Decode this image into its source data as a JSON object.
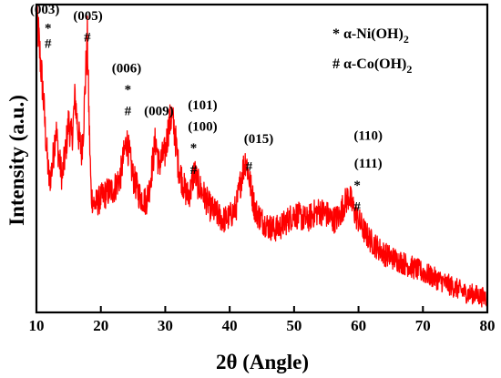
{
  "chart_data": {
    "type": "line",
    "title": "",
    "xlabel": "2θ (Angle)",
    "ylabel": "Intensity (a.u.)",
    "xlim": [
      10,
      80
    ],
    "ylim": [
      0,
      100
    ],
    "x_ticks": [
      10,
      20,
      30,
      40,
      50,
      60,
      70,
      80
    ],
    "x_tick_labels": [
      "10",
      "20",
      "30",
      "40",
      "50",
      "60",
      "70",
      "80"
    ],
    "y_ticks_shown": false,
    "grid": false,
    "line_color": "#ff0000",
    "series": [
      {
        "name": "",
        "x": [
          10,
          10.5,
          11,
          11.5,
          12,
          12.5,
          13,
          13.5,
          14,
          14.5,
          15,
          15.5,
          16,
          16.5,
          17,
          17.3,
          17.6,
          17.9,
          18.2,
          18.5,
          19,
          19.5,
          20,
          21,
          22,
          23,
          23.5,
          24,
          24.5,
          25,
          26,
          27,
          27.5,
          28,
          28.5,
          29,
          30,
          30.5,
          31,
          31.5,
          32,
          33,
          33.5,
          34,
          34.5,
          35,
          36,
          37,
          38,
          39,
          40,
          41,
          41.5,
          42,
          42.5,
          43,
          43.5,
          44,
          45,
          46,
          47,
          48,
          49,
          50,
          51,
          52,
          53,
          54,
          55,
          56,
          57,
          57.5,
          58,
          58.5,
          59,
          59.5,
          60,
          61,
          62,
          63,
          64,
          65,
          66,
          67,
          68,
          69,
          70,
          71,
          72,
          73,
          74,
          75,
          76,
          77,
          78,
          79,
          80
        ],
        "values": [
          99,
          85,
          72,
          55,
          42,
          48,
          60,
          50,
          44,
          52,
          62,
          56,
          70,
          58,
          52,
          60,
          75,
          89,
          60,
          38,
          35,
          36,
          37,
          39,
          40,
          44,
          50,
          56,
          50,
          44,
          38,
          36,
          40,
          48,
          56,
          48,
          52,
          60,
          64,
          58,
          48,
          40,
          38,
          40,
          46,
          42,
          38,
          34,
          32,
          30,
          31,
          34,
          40,
          46,
          50,
          44,
          38,
          33,
          30,
          28,
          27,
          28,
          30,
          32,
          31,
          30,
          32,
          33,
          32,
          30,
          31,
          34,
          36,
          38,
          35,
          32,
          30,
          26,
          23,
          21,
          19,
          18,
          17,
          16,
          15,
          14,
          13,
          12,
          11,
          10,
          9,
          8,
          7,
          6,
          6,
          5,
          5
        ]
      }
    ],
    "annotations": [
      {
        "text": "(003)",
        "x": 11.3,
        "y": 97
      },
      {
        "text": "*",
        "x": 11.8,
        "y": 91
      },
      {
        "text": "#",
        "x": 11.8,
        "y": 86
      },
      {
        "text": "(005)",
        "x": 18.0,
        "y": 95
      },
      {
        "text": "#",
        "x": 17.9,
        "y": 88
      },
      {
        "text": "(006)",
        "x": 24.0,
        "y": 78
      },
      {
        "text": "*",
        "x": 24.2,
        "y": 71
      },
      {
        "text": "#",
        "x": 24.2,
        "y": 64
      },
      {
        "text": "(009)",
        "x": 29.0,
        "y": 64
      },
      {
        "text": "(101)",
        "x": 35.8,
        "y": 66
      },
      {
        "text": "(100)",
        "x": 35.8,
        "y": 59
      },
      {
        "text": "*",
        "x": 34.4,
        "y": 52
      },
      {
        "text": "#",
        "x": 34.4,
        "y": 45
      },
      {
        "text": "(015)",
        "x": 44.5,
        "y": 55
      },
      {
        "text": "#",
        "x": 43.0,
        "y": 46
      },
      {
        "text": "(110)",
        "x": 61.5,
        "y": 56
      },
      {
        "text": "(111)",
        "x": 61.5,
        "y": 47
      },
      {
        "text": "*",
        "x": 59.8,
        "y": 40
      },
      {
        "text": "#",
        "x": 59.8,
        "y": 33
      }
    ],
    "legend": {
      "placement": "top-right",
      "entries": [
        {
          "symbol": "*",
          "label": "α-Ni(OH)",
          "sub": "2"
        },
        {
          "symbol": "#",
          "label": "α-Co(OH)",
          "sub": "2"
        }
      ]
    }
  }
}
